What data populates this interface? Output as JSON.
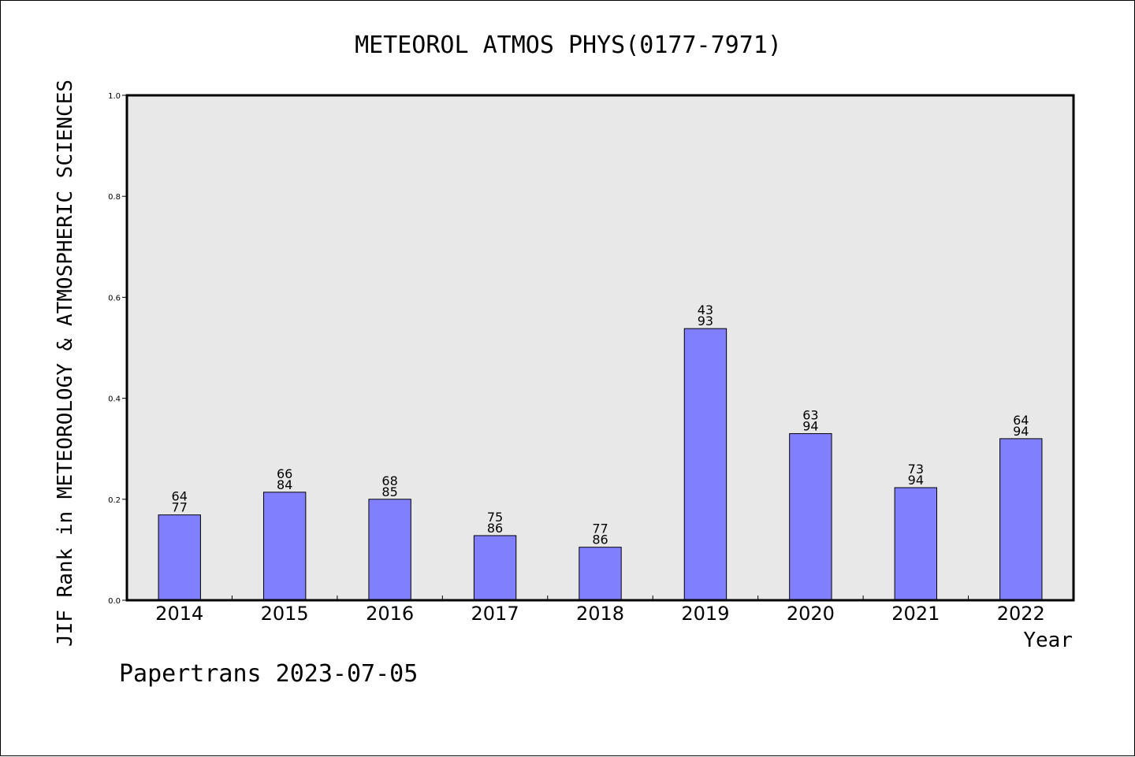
{
  "chart_data": {
    "type": "bar",
    "title": "METEOROL ATMOS PHYS(0177-7971)",
    "xlabel": "Year",
    "ylabel": "JIF Rank in METEOROLOGY & ATMOSPHERIC SCIENCES",
    "ylim": [
      0,
      1.0
    ],
    "yticks": [
      "0.0",
      "0.2",
      "0.4",
      "0.6",
      "0.8",
      "1.0"
    ],
    "categories": [
      "2014",
      "2015",
      "2016",
      "2017",
      "2018",
      "2019",
      "2020",
      "2021",
      "2022"
    ],
    "values": [
      0.169,
      0.214,
      0.2,
      0.128,
      0.105,
      0.538,
      0.33,
      0.223,
      0.32
    ],
    "rank_labels": [
      [
        "64",
        "77"
      ],
      [
        "66",
        "84"
      ],
      [
        "68",
        "85"
      ],
      [
        "75",
        "86"
      ],
      [
        "77",
        "86"
      ],
      [
        "43",
        "93"
      ],
      [
        "63",
        "94"
      ],
      [
        "73",
        "94"
      ],
      [
        "64",
        "94"
      ]
    ],
    "grid": false,
    "bar_color": "#8080ff",
    "plot_background": "#e8e8e8"
  },
  "footer": {
    "credit": "Papertrans 2023-07-05"
  }
}
